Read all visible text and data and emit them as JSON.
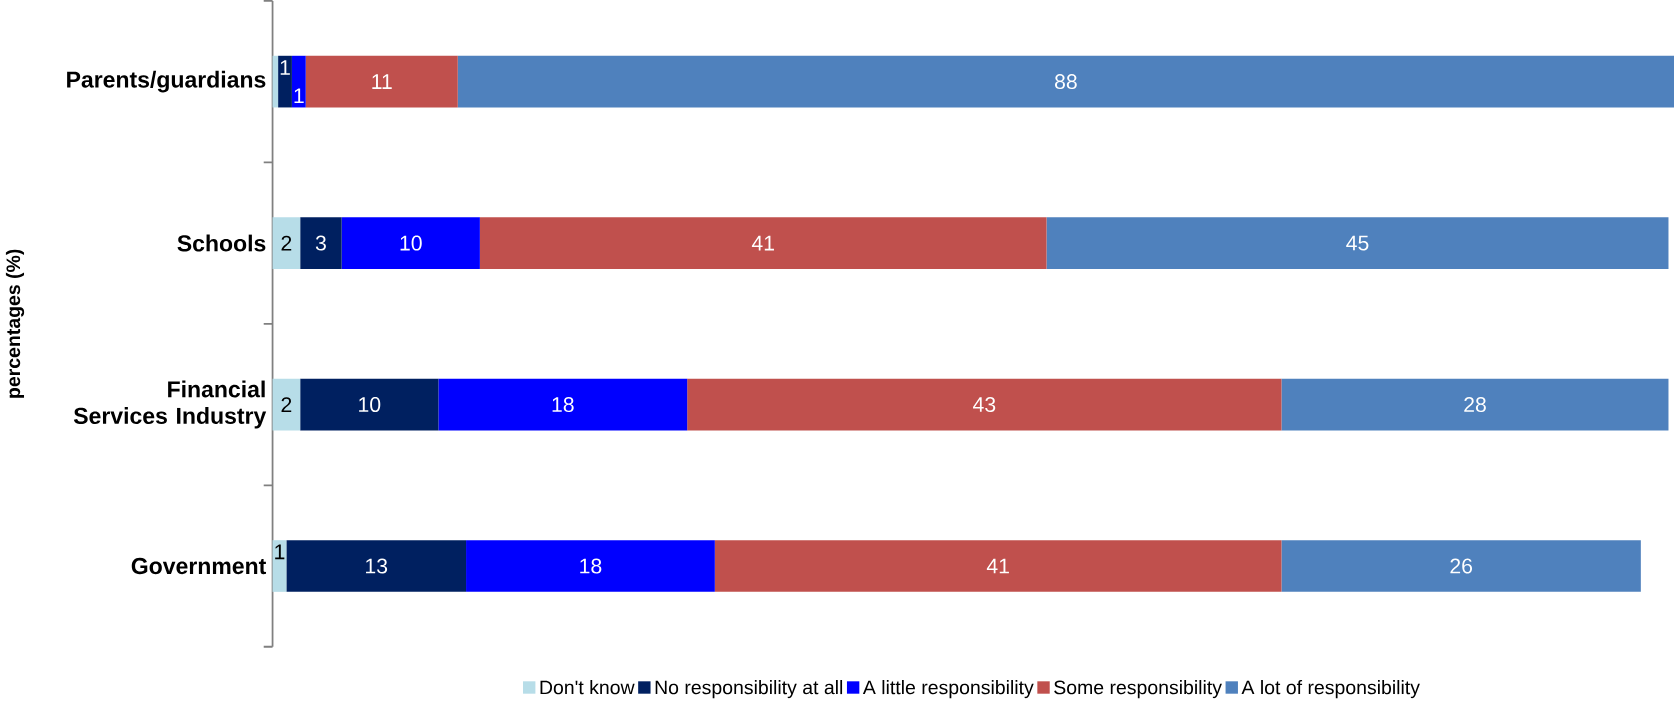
{
  "chart_data": {
    "type": "bar",
    "orientation": "horizontal",
    "stacked": true,
    "ylabel": "percentages (%)",
    "legend": "bottom",
    "categories": [
      "Parents/guardians",
      "Schools",
      "Financial Services Industry",
      "Government"
    ],
    "series": [
      {
        "name": "Don't know",
        "color": "#b7dde8",
        "values": [
          0.4,
          2,
          2,
          1
        ],
        "value_labels": [
          null,
          "2",
          "2",
          "1"
        ]
      },
      {
        "name": "No responsibility at all",
        "color": "#002060",
        "values": [
          1,
          3,
          10,
          13
        ],
        "value_labels": [
          "1",
          "3",
          "10",
          "13"
        ]
      },
      {
        "name": "A little responsibility",
        "color": "#0000ff",
        "values": [
          1,
          10,
          18,
          18
        ],
        "value_labels": [
          "1",
          "10",
          "18",
          "18"
        ]
      },
      {
        "name": "Some responsibility",
        "color": "#c0504d",
        "values": [
          11,
          41,
          43,
          41
        ],
        "value_labels": [
          "11",
          "41",
          "43",
          "41"
        ]
      },
      {
        "name": "A lot of responsibility",
        "color": "#4f81bd",
        "values": [
          88,
          45,
          28,
          26
        ],
        "value_labels": [
          "88",
          "45",
          "28",
          "26"
        ]
      }
    ]
  }
}
